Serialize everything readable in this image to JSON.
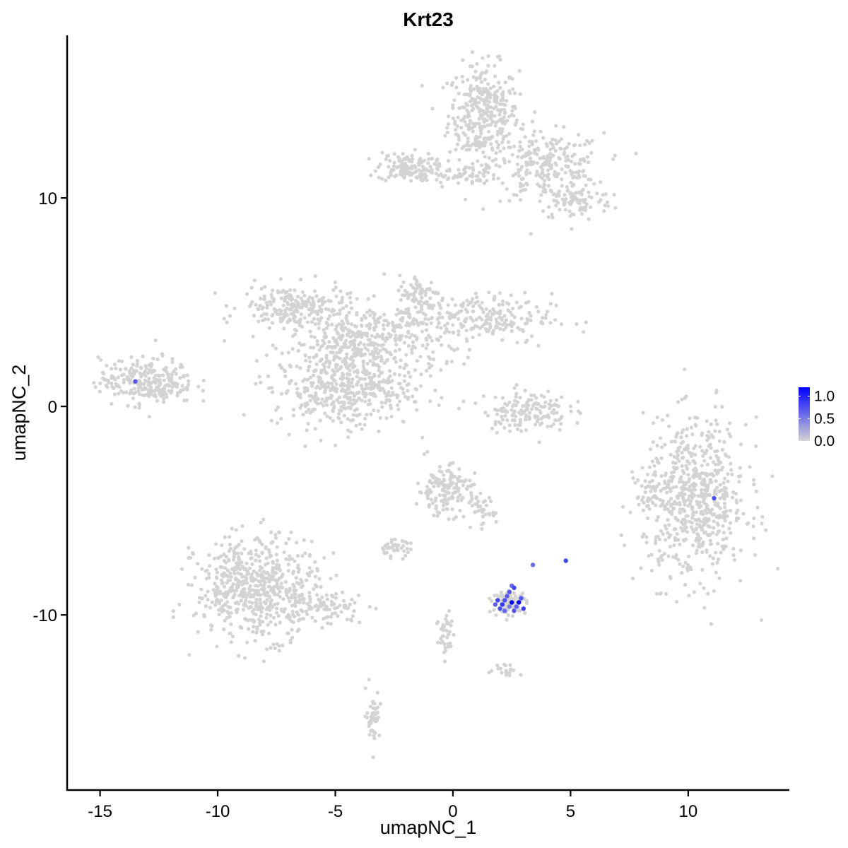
{
  "chart_data": {
    "type": "scatter",
    "title": "Krt23",
    "xlabel": "umapNC_1",
    "ylabel": "umapNC_2",
    "xlim": [
      -16.4,
      14.3
    ],
    "ylim": [
      -18.4,
      17.8
    ],
    "xticks": [
      -15,
      -10,
      -5,
      0,
      5,
      10
    ],
    "yticks": [
      -10,
      0,
      10
    ],
    "xtick_labels": [
      "-15",
      "-10",
      "-5",
      "0",
      "5",
      "10"
    ],
    "ytick_labels": [
      "-10",
      "0",
      "10"
    ],
    "grid": false,
    "legend_placement": "right",
    "color_scale": {
      "low": "#d3d3d3",
      "high": "#0000ff",
      "min": 0,
      "max": 1.2,
      "ticks": [
        0.0,
        0.5,
        1.0
      ],
      "tick_labels": [
        "0.0",
        "0.5",
        "1.0"
      ]
    },
    "background_color": "#d3d3d3",
    "clusters": [
      {
        "name": "top-right-blob",
        "cx": 1.3,
        "cy": 14.0,
        "sx": 0.75,
        "sy": 1.2,
        "n": 350
      },
      {
        "name": "top-right-lower",
        "cx": 4.0,
        "cy": 11.5,
        "sx": 1.2,
        "sy": 0.8,
        "n": 250
      },
      {
        "name": "top-right-tail",
        "cx": 5.2,
        "cy": 9.8,
        "sx": 0.8,
        "sy": 0.45,
        "n": 90
      },
      {
        "name": "top-left-arm",
        "cx": -2.0,
        "cy": 11.5,
        "sx": 0.6,
        "sy": 0.35,
        "n": 120
      },
      {
        "name": "top-bridge",
        "cx": 0.0,
        "cy": 11.1,
        "sx": 1.0,
        "sy": 0.25,
        "n": 70
      },
      {
        "name": "star-center",
        "cx": -3.7,
        "cy": 3.0,
        "sx": 1.6,
        "sy": 0.9,
        "n": 400
      },
      {
        "name": "star-left-arm",
        "cx": -6.8,
        "cy": 4.8,
        "sx": 1.1,
        "sy": 0.5,
        "n": 200
      },
      {
        "name": "star-right-arm",
        "cx": 0.8,
        "cy": 4.2,
        "sx": 1.7,
        "sy": 0.6,
        "n": 250
      },
      {
        "name": "star-upper-arm",
        "cx": -1.4,
        "cy": 5.3,
        "sx": 0.45,
        "sy": 0.5,
        "n": 80
      },
      {
        "name": "star-lower",
        "cx": -4.7,
        "cy": 0.8,
        "sx": 1.5,
        "sy": 0.9,
        "n": 400
      },
      {
        "name": "far-left",
        "cx": -13.0,
        "cy": 1.2,
        "sx": 1.0,
        "sy": 0.55,
        "n": 260
      },
      {
        "name": "middle-arc",
        "cx": 3.1,
        "cy": -0.2,
        "sx": 0.9,
        "sy": 0.5,
        "n": 150
      },
      {
        "name": "right-blob",
        "cx": 10.3,
        "cy": -4.5,
        "sx": 1.1,
        "sy": 1.9,
        "n": 650
      },
      {
        "name": "right-left-edge",
        "cx": 8.3,
        "cy": -4.3,
        "sx": 0.25,
        "sy": 0.4,
        "n": 30
      },
      {
        "name": "bottom-left-blob",
        "cx": -8.3,
        "cy": -8.7,
        "sx": 1.3,
        "sy": 1.2,
        "n": 600
      },
      {
        "name": "bottom-left-tail",
        "cx": -5.4,
        "cy": -9.6,
        "sx": 0.9,
        "sy": 0.35,
        "n": 80
      },
      {
        "name": "center-small",
        "cx": -0.4,
        "cy": -4.0,
        "sx": 0.55,
        "sy": 0.6,
        "n": 150
      },
      {
        "name": "center-small-tail",
        "cx": 1.1,
        "cy": -5.0,
        "sx": 0.35,
        "sy": 0.45,
        "n": 40
      },
      {
        "name": "center-lower",
        "cx": -2.5,
        "cy": -6.8,
        "sx": 0.35,
        "sy": 0.2,
        "n": 40
      },
      {
        "name": "hotspot",
        "cx": 2.4,
        "cy": -9.4,
        "sx": 0.35,
        "sy": 0.25,
        "n": 110
      },
      {
        "name": "lower-stem",
        "cx": -0.3,
        "cy": -11.0,
        "sx": 0.2,
        "sy": 0.7,
        "n": 40
      },
      {
        "name": "lower-right",
        "cx": 2.3,
        "cy": -12.6,
        "sx": 0.3,
        "sy": 0.15,
        "n": 20
      },
      {
        "name": "bottom-stem",
        "cx": -3.4,
        "cy": -14.8,
        "sx": 0.15,
        "sy": 0.6,
        "n": 45
      }
    ],
    "highlight_points": [
      {
        "x": -13.5,
        "y": 1.2,
        "value": 0.7
      },
      {
        "x": 11.1,
        "y": -4.4,
        "value": 0.75
      },
      {
        "x": 4.8,
        "y": -7.4,
        "value": 0.8
      },
      {
        "x": 3.4,
        "y": -7.6,
        "value": 0.6
      },
      {
        "x": 1.9,
        "y": -9.3,
        "value": 0.8
      },
      {
        "x": 2.1,
        "y": -9.5,
        "value": 0.9
      },
      {
        "x": 2.3,
        "y": -9.1,
        "value": 0.7
      },
      {
        "x": 2.5,
        "y": -9.4,
        "value": 1.2
      },
      {
        "x": 2.8,
        "y": -9.4,
        "value": 1.2
      },
      {
        "x": 2.6,
        "y": -8.7,
        "value": 0.8
      },
      {
        "x": 2.4,
        "y": -8.9,
        "value": 0.7
      },
      {
        "x": 3.0,
        "y": -9.7,
        "value": 0.85
      },
      {
        "x": 2.0,
        "y": -9.7,
        "value": 0.75
      },
      {
        "x": 2.2,
        "y": -9.8,
        "value": 0.6
      },
      {
        "x": 1.8,
        "y": -9.5,
        "value": 0.7
      },
      {
        "x": 2.7,
        "y": -9.6,
        "value": 0.65
      },
      {
        "x": 2.9,
        "y": -9.2,
        "value": 0.7
      },
      {
        "x": 2.5,
        "y": -8.6,
        "value": 0.6
      },
      {
        "x": 2.2,
        "y": -9.3,
        "value": 0.75
      },
      {
        "x": 2.6,
        "y": -9.8,
        "value": 0.7
      },
      {
        "x": 2.4,
        "y": -9.6,
        "value": 0.5
      }
    ]
  }
}
